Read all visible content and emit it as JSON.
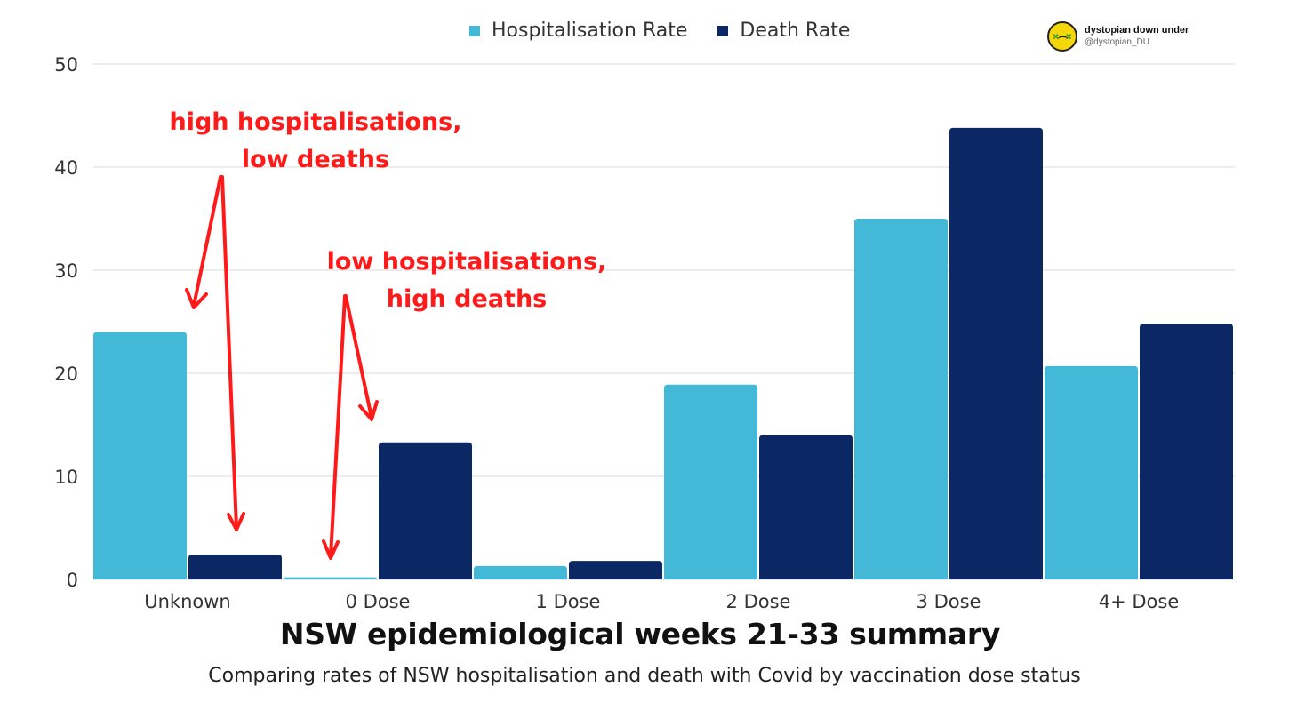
{
  "legend": {
    "hospitalisation_label": "Hospitalisation Rate",
    "death_label": "Death Rate"
  },
  "brand": {
    "name": "dystopian down under",
    "handle": "@dystopian_DU"
  },
  "annotations": {
    "first": {
      "line1": "high hospitalisations,",
      "line2": "low deaths"
    },
    "second": {
      "line1": "low hospitalisations,",
      "line2": "high deaths"
    }
  },
  "colors": {
    "hospitalisation": "#43b9d7",
    "death": "#0b2764",
    "gridline": "#d9d9d9",
    "annotation": "#ff1a1a"
  },
  "chart_data": {
    "type": "bar",
    "title": "NSW epidemiological weeks 21-33 summary",
    "subtitle": "Comparing rates of NSW hospitalisation and death with Covid by vaccination dose status",
    "xlabel": "",
    "ylabel": "",
    "ylim": [
      0,
      50
    ],
    "yticks": [
      0,
      10,
      20,
      30,
      40,
      50
    ],
    "grid": true,
    "legend_position": "top-center",
    "categories": [
      "Unknown",
      "0 Dose",
      "1 Dose",
      "2 Dose",
      "3 Dose",
      "4+ Dose"
    ],
    "series": [
      {
        "name": "Hospitalisation Rate",
        "values": [
          24.0,
          0.2,
          1.3,
          18.9,
          35.0,
          20.7
        ]
      },
      {
        "name": "Death Rate",
        "values": [
          2.4,
          13.3,
          1.8,
          14.0,
          43.8,
          24.8
        ]
      }
    ]
  }
}
